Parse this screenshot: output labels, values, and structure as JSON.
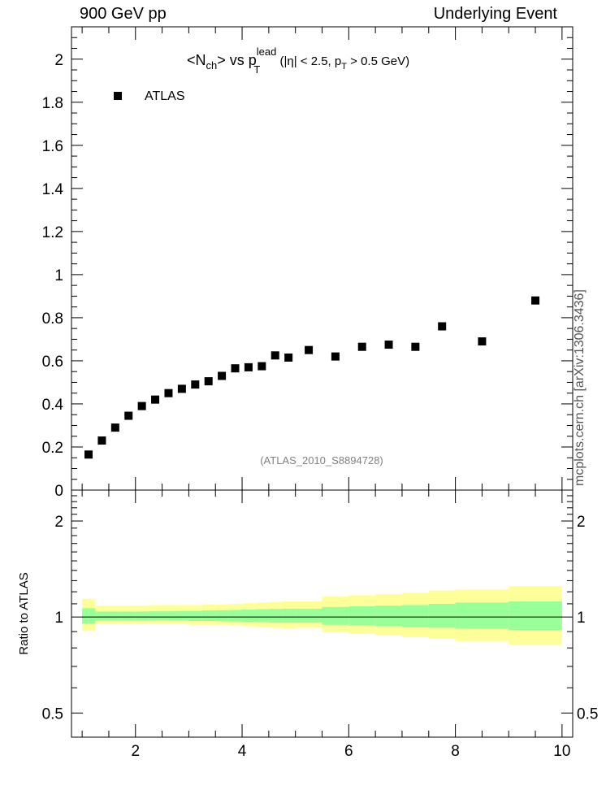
{
  "header": {
    "left": "900 GeV pp",
    "right": "Underlying Event"
  },
  "side_label": "mcplots.cern.ch [arXiv:1306.3436]",
  "colors": {
    "data_marker": "#000000",
    "band_inner": "#99ff99",
    "band_outer": "#ffff99",
    "ref_text": "#808080"
  },
  "chart_data": [
    {
      "type": "scatter",
      "title_parts": {
        "n_open": "<N",
        "n_sub": "ch",
        "n_close": "> vs p",
        "p_sup": "lead",
        "p_sub": "T",
        "cut_open": " (|η| < 2.5, p",
        "cut_sub": "T",
        "cut_close": " > 0.5 GeV)"
      },
      "legend": {
        "label": "ATLAS",
        "position": "top-left"
      },
      "ref_label": "(ATLAS_2010_S8894728)",
      "xlim": [
        0.8,
        10.2
      ],
      "ylim": [
        0,
        2.15
      ],
      "y_ticks": [
        0,
        0.2,
        0.4,
        0.6,
        0.8,
        1,
        1.2,
        1.4,
        1.6,
        1.8,
        2
      ],
      "y_tick_labels": [
        "0",
        "0.2",
        "0.4",
        "0.6",
        "0.8",
        "1",
        "1.2",
        "1.4",
        "1.6",
        "1.8",
        "2"
      ],
      "series": [
        {
          "name": "ATLAS",
          "x": [
            1.12,
            1.37,
            1.62,
            1.87,
            2.12,
            2.37,
            2.62,
            2.87,
            3.12,
            3.37,
            3.62,
            3.87,
            4.12,
            4.37,
            4.62,
            4.87,
            5.25,
            5.75,
            6.25,
            6.75,
            7.25,
            7.75,
            8.5,
            9.5
          ],
          "y": [
            0.165,
            0.23,
            0.29,
            0.345,
            0.39,
            0.42,
            0.45,
            0.47,
            0.49,
            0.505,
            0.53,
            0.565,
            0.57,
            0.575,
            0.625,
            0.615,
            0.65,
            0.62,
            0.665,
            0.675,
            0.665,
            0.76,
            0.69,
            0.88
          ]
        }
      ]
    },
    {
      "type": "area",
      "ylabel": "Ratio to ATLAS",
      "xlim": [
        0.8,
        10.2
      ],
      "ylim": [
        0.42,
        2.5
      ],
      "y_scale": "log",
      "x_ticks": [
        2,
        4,
        6,
        8,
        10
      ],
      "x_tick_labels": [
        "2",
        "4",
        "6",
        "8",
        "10"
      ],
      "y_ticks": [
        0.5,
        1,
        2
      ],
      "y_tick_labels": [
        "0.5",
        "1",
        "2"
      ],
      "bins": [
        1.0,
        1.25,
        1.5,
        1.75,
        2.0,
        2.25,
        2.5,
        2.75,
        3.0,
        3.25,
        3.5,
        3.75,
        4.0,
        4.25,
        4.5,
        4.75,
        5.0,
        5.5,
        6.0,
        6.5,
        7.0,
        7.5,
        8.0,
        9.0,
        10.0
      ],
      "bands": [
        {
          "name": "total",
          "low": [
            0.905,
            0.95,
            0.95,
            0.95,
            0.95,
            0.95,
            0.95,
            0.95,
            0.945,
            0.945,
            0.945,
            0.94,
            0.935,
            0.93,
            0.925,
            0.92,
            0.925,
            0.895,
            0.885,
            0.875,
            0.865,
            0.855,
            0.84,
            0.82
          ],
          "high": [
            1.14,
            1.085,
            1.085,
            1.085,
            1.085,
            1.09,
            1.09,
            1.09,
            1.09,
            1.095,
            1.095,
            1.1,
            1.105,
            1.11,
            1.115,
            1.12,
            1.12,
            1.16,
            1.17,
            1.18,
            1.19,
            1.21,
            1.22,
            1.25
          ]
        },
        {
          "name": "stat",
          "low": [
            0.955,
            0.975,
            0.975,
            0.975,
            0.975,
            0.975,
            0.975,
            0.975,
            0.972,
            0.972,
            0.97,
            0.968,
            0.966,
            0.963,
            0.96,
            0.96,
            0.96,
            0.945,
            0.94,
            0.935,
            0.93,
            0.925,
            0.92,
            0.91
          ],
          "high": [
            1.065,
            1.04,
            1.04,
            1.04,
            1.04,
            1.042,
            1.042,
            1.045,
            1.045,
            1.048,
            1.05,
            1.052,
            1.055,
            1.058,
            1.06,
            1.062,
            1.062,
            1.075,
            1.08,
            1.085,
            1.09,
            1.1,
            1.11,
            1.12
          ]
        }
      ]
    }
  ]
}
